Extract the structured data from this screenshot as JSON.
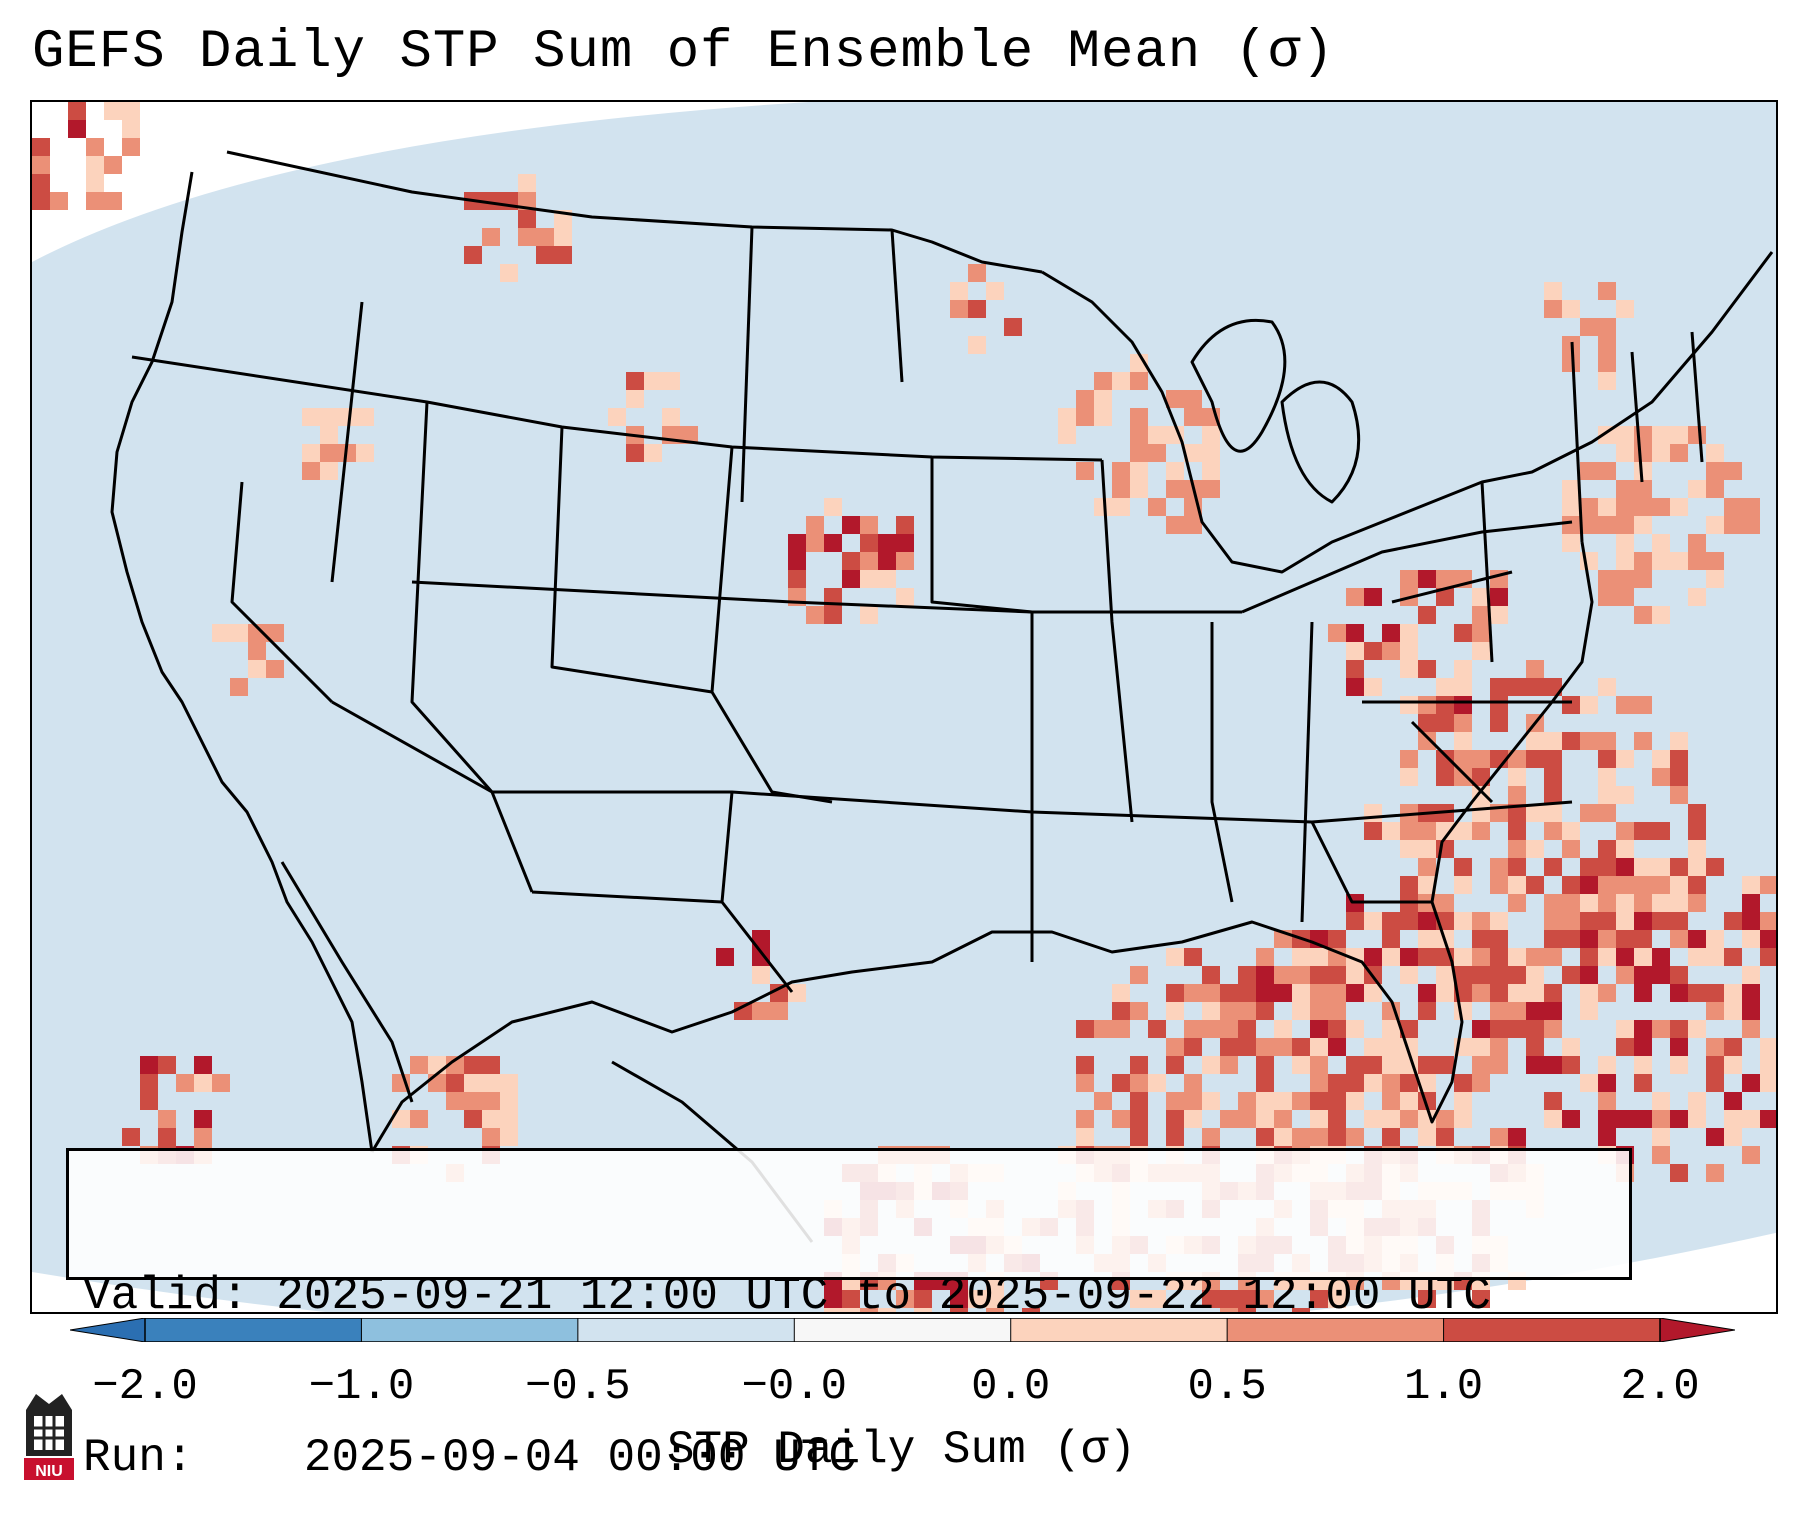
{
  "title": "GEFS Daily STP Sum of Ensemble Mean (σ)",
  "info": {
    "valid_label": "Valid:",
    "valid_value": "2025-09-21 12:00 UTC to 2025-09-22 12:00 UTC",
    "run_label": "Run:",
    "run_value": "2025-09-04 00:00 UTC"
  },
  "colorbar": {
    "label": "STP Daily Sum (σ)",
    "ticks": [
      "−2.0",
      "−1.0",
      "−0.5",
      "−0.0",
      "0.0",
      "0.5",
      "1.0",
      "2.0"
    ],
    "colors": [
      "#3a81bc",
      "#8ec0de",
      "#d2e3ef",
      "#f7f7f7",
      "#fcd3bd",
      "#eb9077",
      "#cc4c43"
    ],
    "under_color": "#2b6fb2",
    "over_color": "#b2182b"
  },
  "map": {
    "ocean_color": "#d2e3ef",
    "land_color": "#d2e3ef",
    "border_color": "#000000"
  },
  "logo": {
    "text": "NIU",
    "color": "#c8102e"
  }
}
